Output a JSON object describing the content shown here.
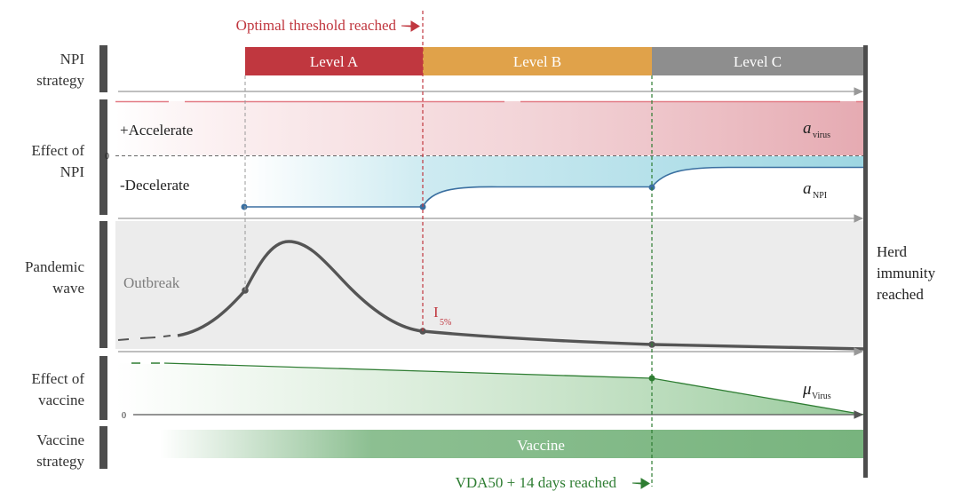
{
  "annotations": {
    "optimal_threshold": "Optimal threshold reached",
    "vda50": "VDA50 + 14 days reached"
  },
  "rows": {
    "npi_strategy": [
      "NPI",
      "strategy"
    ],
    "effect_of_npi": [
      "Effect of",
      "NPI"
    ],
    "pandemic_wave": [
      "Pandemic",
      "wave"
    ],
    "effect_of_vaccine": [
      "Effect of",
      "vaccine"
    ],
    "vaccine_strategy": [
      "Vaccine",
      "strategy"
    ]
  },
  "levels": {
    "a": "Level A",
    "b": "Level B",
    "c": "Level C"
  },
  "effect_npi": {
    "accelerate": "+Accelerate",
    "decelerate": "-Decelerate",
    "zero": "0",
    "a_virus_symbol": "a",
    "a_virus_sub": "virus",
    "a_npi_symbol": "a",
    "a_npi_sub": "NPI"
  },
  "pandemic": {
    "outbreak": "Outbreak",
    "i_symbol": "I",
    "i_sub": "5%"
  },
  "vaccine_effect": {
    "zero": "0",
    "mu_symbol": "μ",
    "mu_sub": "Virus"
  },
  "vaccine_bar": "Vaccine",
  "herd_immunity": [
    "Herd",
    "immunity",
    "reached"
  ],
  "colors": {
    "level_a": "#c0373f",
    "level_b": "#e0a24a",
    "level_c": "#8e8e8e",
    "red_annotation": "#c0373f",
    "green_annotation": "#2e7d32",
    "npi_curve": "#3a6fa0",
    "wave_curve": "#555555",
    "vaccine_green": "#74b27c",
    "band_gray": "#4d4d4d"
  }
}
